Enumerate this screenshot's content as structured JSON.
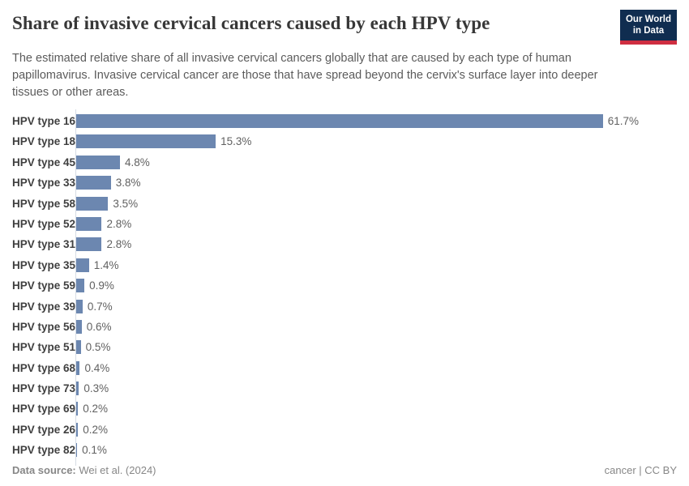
{
  "header": {
    "title": "Share of invasive cervical cancers caused by each HPV type",
    "subtitle": "The estimated relative share of all invasive cervical cancers globally that are caused by each type of human papillomavirus. Invasive cervical cancer are those that have spread beyond the cervix's surface layer into deeper tissues or other areas.",
    "logo": {
      "line1": "Our World",
      "line2": "in Data"
    }
  },
  "chart_data": {
    "type": "bar",
    "orientation": "horizontal",
    "title": "Share of invasive cervical cancers caused by each HPV type",
    "categories": [
      "HPV type 16",
      "HPV type 18",
      "HPV type 45",
      "HPV type 33",
      "HPV type 58",
      "HPV type 52",
      "HPV type 31",
      "HPV type 35",
      "HPV type 59",
      "HPV type 39",
      "HPV type 56",
      "HPV type 51",
      "HPV type 68",
      "HPV type 73",
      "HPV type 69",
      "HPV type 26",
      "HPV type 82"
    ],
    "values": [
      61.7,
      15.3,
      4.8,
      3.8,
      3.5,
      2.8,
      2.8,
      1.4,
      0.9,
      0.7,
      0.6,
      0.5,
      0.4,
      0.3,
      0.2,
      0.2,
      0.1
    ],
    "value_suffix": "%",
    "xmax": 61.7,
    "grid": false,
    "legend": "none",
    "colors": {
      "bar": "#6c87b0",
      "axis": "#d6dce4",
      "logo_bg": "#102d50",
      "logo_accent": "#cf2e41"
    }
  },
  "footer": {
    "source_label": "Data source:",
    "source_value": "Wei et al. (2024)",
    "license": "cancer | CC BY"
  }
}
